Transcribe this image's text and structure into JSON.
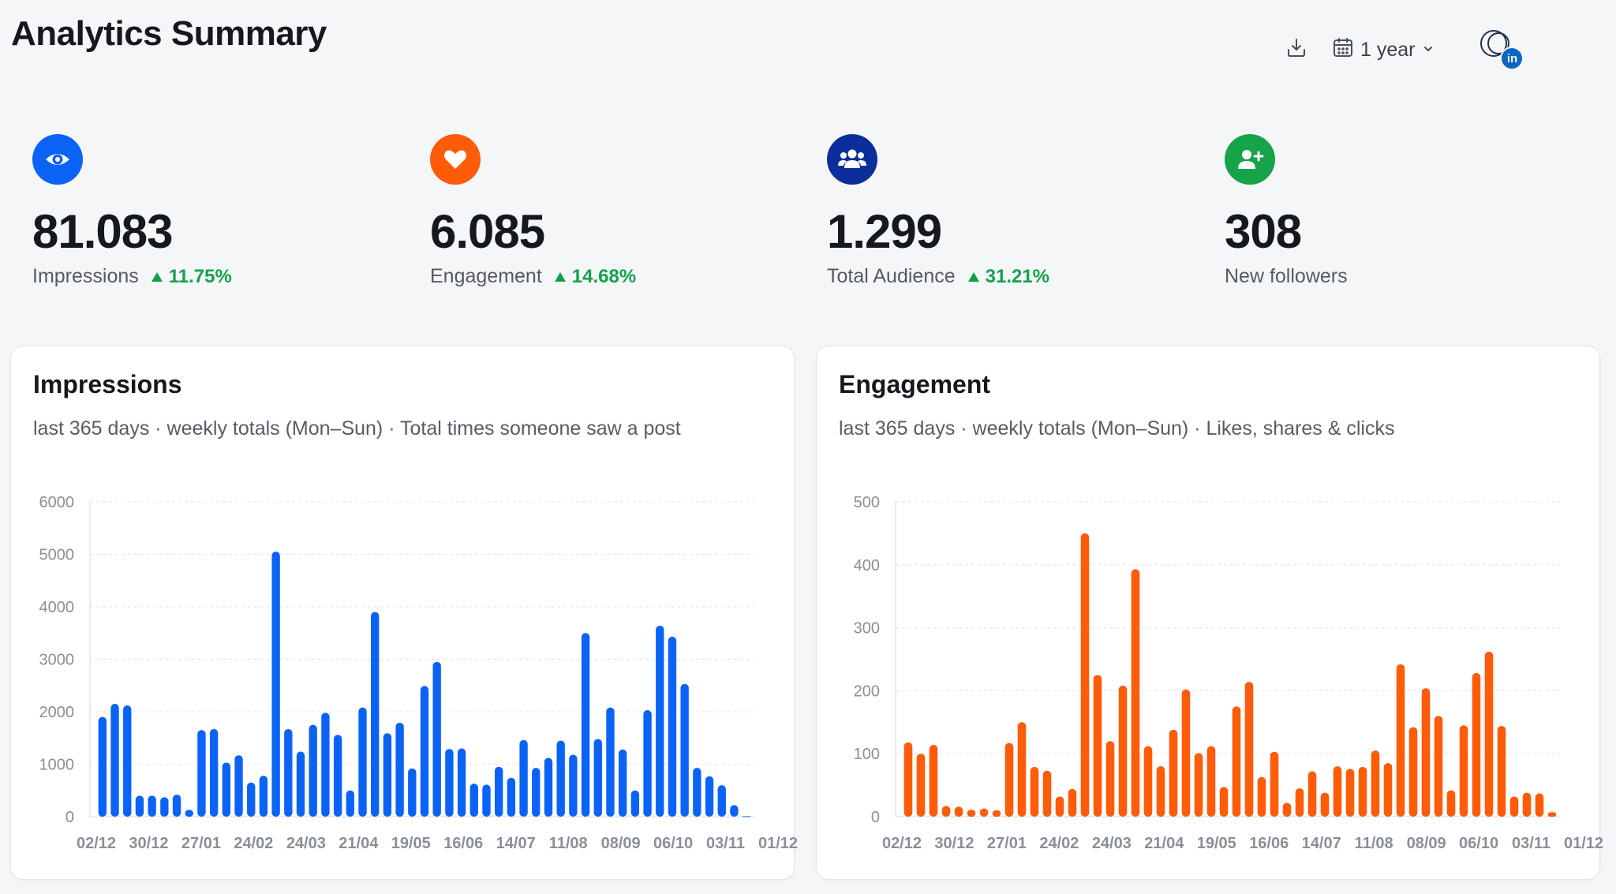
{
  "header": {
    "title": "Analytics Summary",
    "period_label": "1 year",
    "account_badge": "in"
  },
  "colors": {
    "impressions": "#0b63f6",
    "engagement": "#ff5c0a",
    "audience": "#0b2f9a",
    "followers": "#16a34a",
    "positive": "#12a14b"
  },
  "icons": {
    "download": "download-icon",
    "calendar": "calendar-icon",
    "chevron": "chevron-down-icon",
    "impressions": "eye-icon",
    "engagement": "heart-icon",
    "audience": "users-icon",
    "followers": "user-plus-icon"
  },
  "kpis": [
    {
      "value": "81.083",
      "label": "Impressions",
      "delta": "11.75%"
    },
    {
      "value": "6.085",
      "label": "Engagement",
      "delta": "14.68%"
    },
    {
      "value": "1.299",
      "label": "Total Audience",
      "delta": "31.21%"
    },
    {
      "value": "308",
      "label": "New followers",
      "delta": ""
    }
  ],
  "cards": [
    {
      "title": "Impressions",
      "subtitle": "last 365 days · weekly totals (Mon–Sun) · Total times someone saw a post"
    },
    {
      "title": "Engagement",
      "subtitle": "last 365 days · weekly totals (Mon–Sun) · Likes, shares & clicks"
    }
  ],
  "chart_data": [
    {
      "type": "bar",
      "title": "Impressions",
      "subtitle": "last 365 days · weekly totals (Mon–Sun) · Total times someone saw a post",
      "xlabel": "",
      "ylabel": "",
      "ylim": [
        0,
        6000
      ],
      "yticks": [
        0,
        1000,
        2000,
        3000,
        4000,
        5000,
        6000
      ],
      "grid": true,
      "xtick_labels": [
        "02/12",
        "30/12",
        "27/01",
        "24/02",
        "24/03",
        "21/04",
        "19/05",
        "16/06",
        "14/07",
        "11/08",
        "08/09",
        "06/10",
        "03/11",
        "01/12"
      ],
      "values": [
        1900,
        2150,
        2120,
        400,
        400,
        370,
        420,
        130,
        1650,
        1670,
        1030,
        1170,
        650,
        780,
        5050,
        1670,
        1240,
        1750,
        1980,
        1560,
        500,
        2080,
        3900,
        1590,
        1790,
        920,
        2490,
        2950,
        1290,
        1300,
        630,
        610,
        950,
        740,
        1460,
        930,
        1120,
        1450,
        1180,
        3500,
        1480,
        2080,
        1280,
        500,
        2030,
        3640,
        3430,
        2530,
        930,
        770,
        600,
        220,
        10
      ]
    },
    {
      "type": "bar",
      "title": "Engagement",
      "subtitle": "last 365 days · weekly totals (Mon–Sun) · Likes, shares & clicks",
      "xlabel": "",
      "ylabel": "",
      "ylim": [
        0,
        500
      ],
      "yticks": [
        0,
        100,
        200,
        300,
        400,
        500
      ],
      "grid": true,
      "xtick_labels": [
        "02/12",
        "30/12",
        "27/01",
        "24/02",
        "24/03",
        "21/04",
        "19/05",
        "16/06",
        "14/07",
        "11/08",
        "08/09",
        "06/10",
        "03/11",
        "01/12"
      ],
      "values": [
        118,
        100,
        114,
        17,
        16,
        11,
        13,
        10,
        117,
        150,
        79,
        73,
        32,
        44,
        450,
        225,
        120,
        208,
        393,
        112,
        80,
        138,
        202,
        101,
        112,
        47,
        175,
        214,
        63,
        103,
        22,
        45,
        72,
        38,
        80,
        76,
        79,
        105,
        85,
        242,
        142,
        204,
        160,
        42,
        145,
        228,
        262,
        144,
        32,
        38,
        37,
        7
      ]
    }
  ]
}
